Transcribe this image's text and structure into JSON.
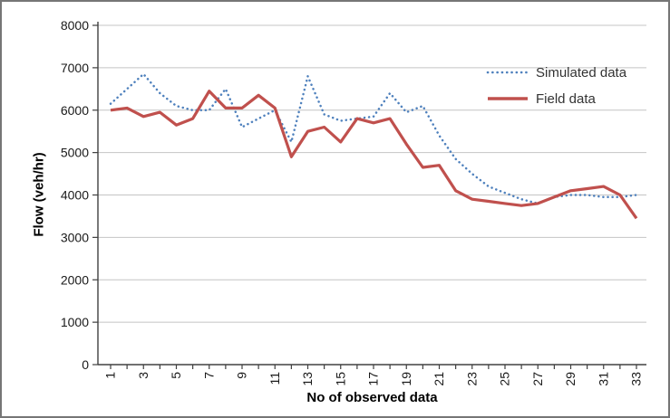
{
  "chart_data": {
    "type": "line",
    "title": "",
    "xlabel": "No of observed data",
    "ylabel": "Flow (veh/hr)",
    "x": [
      1,
      2,
      3,
      4,
      5,
      6,
      7,
      8,
      9,
      10,
      11,
      12,
      13,
      14,
      15,
      16,
      17,
      18,
      19,
      20,
      21,
      22,
      23,
      24,
      25,
      26,
      27,
      28,
      29,
      30,
      31,
      32,
      33
    ],
    "x_tick_labels": [
      "1",
      "3",
      "5",
      "7",
      "9",
      "11",
      "13",
      "15",
      "17",
      "19",
      "21",
      "23",
      "25",
      "27",
      "29",
      "31",
      "33"
    ],
    "y_ticks": [
      0,
      1000,
      2000,
      3000,
      4000,
      5000,
      6000,
      7000,
      8000
    ],
    "y_tick_labels": [
      "0",
      "1000",
      "2000",
      "3000",
      "4000",
      "5000",
      "6000",
      "7000",
      "8000"
    ],
    "ylim": [
      0,
      8000
    ],
    "grid": "horizontal",
    "legend_position": "inside-top-right",
    "series": [
      {
        "name": "Simulated data",
        "style": "dotted",
        "color": "#4F81BD",
        "values": [
          6150,
          6500,
          6850,
          6400,
          6100,
          6000,
          6000,
          6500,
          5600,
          5800,
          6000,
          5250,
          6800,
          5900,
          5750,
          5800,
          5850,
          6400,
          5950,
          6100,
          5400,
          4850,
          4500,
          4200,
          4050,
          3900,
          3800,
          3950,
          4000,
          4000,
          3950,
          3950,
          4000
        ]
      },
      {
        "name": "Field data",
        "style": "solid",
        "color": "#C0504D",
        "values": [
          6000,
          6050,
          5850,
          5950,
          5650,
          5800,
          6450,
          6050,
          6050,
          6350,
          6050,
          4900,
          5500,
          5600,
          5250,
          5800,
          5700,
          5800,
          5200,
          4650,
          4700,
          4100,
          3900,
          3850,
          3800,
          3750,
          3800,
          3950,
          4100,
          4150,
          4200,
          4000,
          3450
        ]
      }
    ],
    "colors": {
      "gridline": "#C4C4C4",
      "axis": "#404040",
      "tick_text": "#1a1a1a",
      "frame_border": "#767676"
    }
  }
}
